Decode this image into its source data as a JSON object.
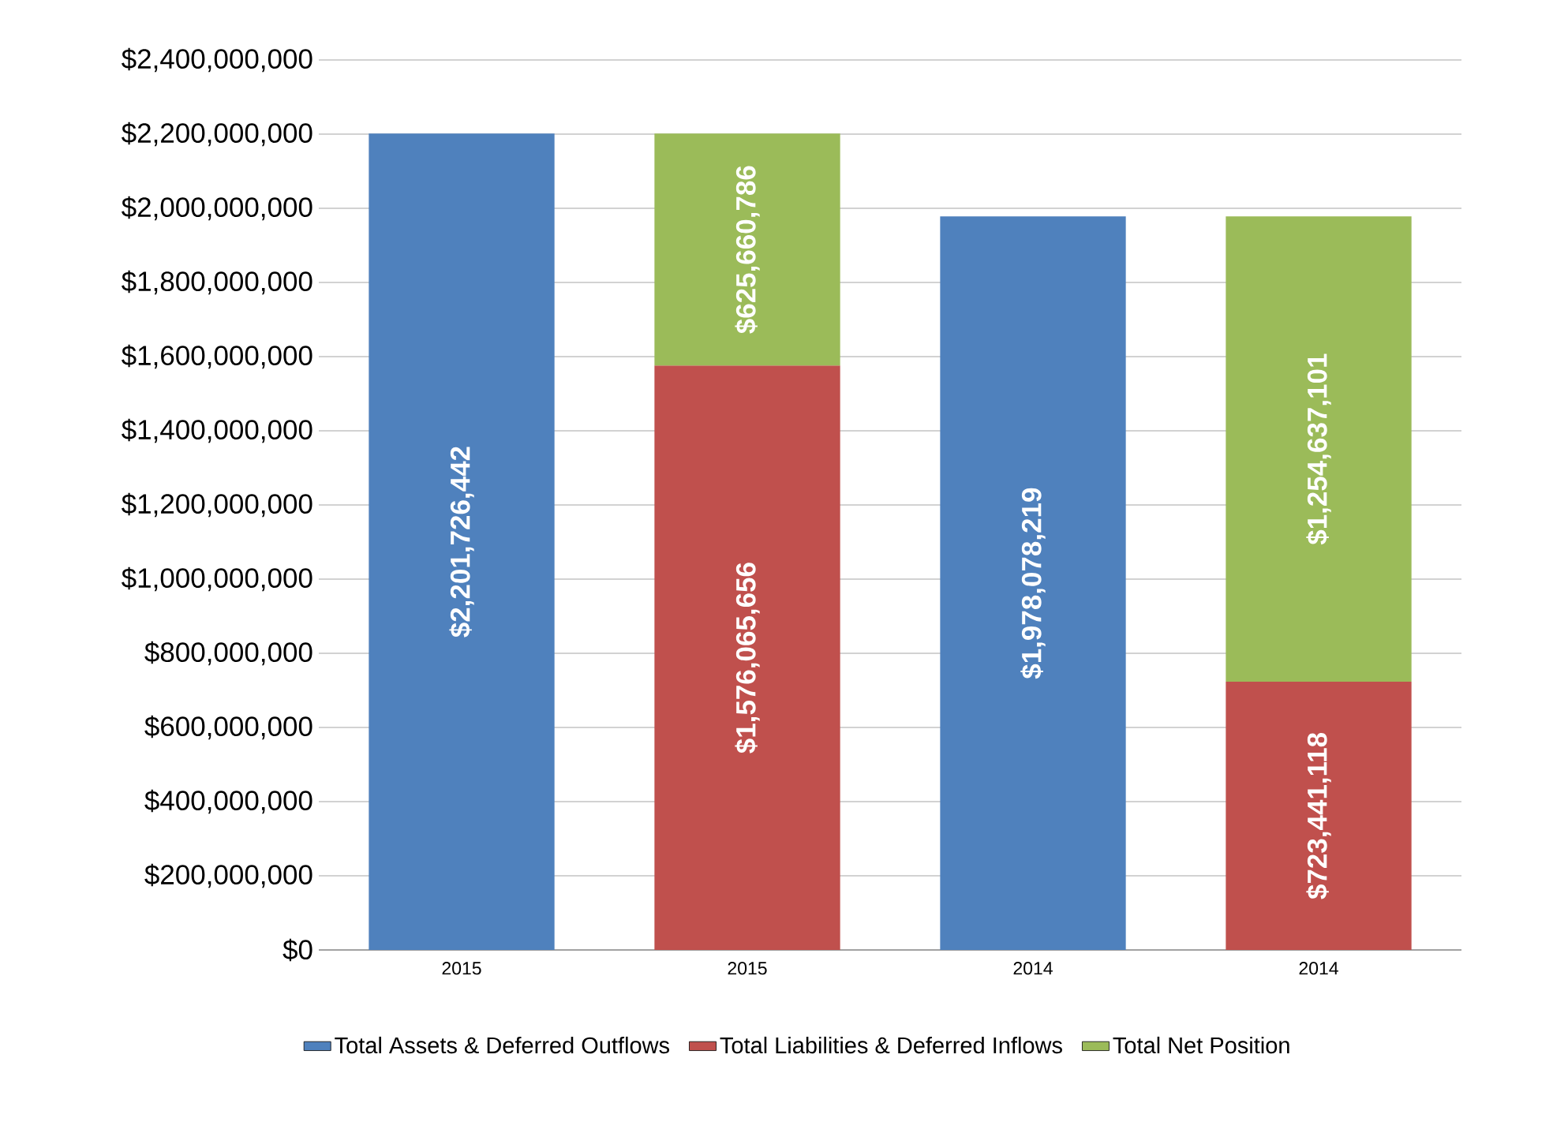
{
  "chart_data": {
    "type": "bar",
    "stacked": true,
    "categories": [
      "2015",
      "2015",
      "2014",
      "2014"
    ],
    "series": [
      {
        "name": "Total Assets & Deferred Outflows",
        "color": "#4f81bd",
        "values": [
          2201726442,
          null,
          1978078219,
          null
        ],
        "value_labels": [
          "$2,201,726,442",
          null,
          "$1,978,078,219",
          null
        ]
      },
      {
        "name": "Total Liabilities & Deferred Inflows",
        "color": "#c0504d",
        "values": [
          null,
          1576065656,
          null,
          723441118
        ],
        "value_labels": [
          null,
          "$1,576,065,656",
          null,
          "$723,441,118"
        ]
      },
      {
        "name": "Total Net Position",
        "color": "#9bbb59",
        "values": [
          null,
          625660786,
          null,
          1254637101
        ],
        "value_labels": [
          null,
          "$625,660,786",
          null,
          "$1,254,637,101"
        ]
      }
    ],
    "ylim": [
      0,
      2400000000
    ],
    "yticks": [
      {
        "value": 0,
        "label": "$0"
      },
      {
        "value": 200000000,
        "label": "$200,000,000"
      },
      {
        "value": 400000000,
        "label": "$400,000,000"
      },
      {
        "value": 600000000,
        "label": "$600,000,000"
      },
      {
        "value": 800000000,
        "label": "$800,000,000"
      },
      {
        "value": 1000000000,
        "label": "$1,000,000,000"
      },
      {
        "value": 1200000000,
        "label": "$1,200,000,000"
      },
      {
        "value": 1400000000,
        "label": "$1,400,000,000"
      },
      {
        "value": 1600000000,
        "label": "$1,600,000,000"
      },
      {
        "value": 1800000000,
        "label": "$1,800,000,000"
      },
      {
        "value": 2000000000,
        "label": "$2,000,000,000"
      },
      {
        "value": 2200000000,
        "label": "$2,200,000,000"
      },
      {
        "value": 2400000000,
        "label": "$2,400,000,000"
      }
    ],
    "grid": "y",
    "legend": "bottom"
  }
}
